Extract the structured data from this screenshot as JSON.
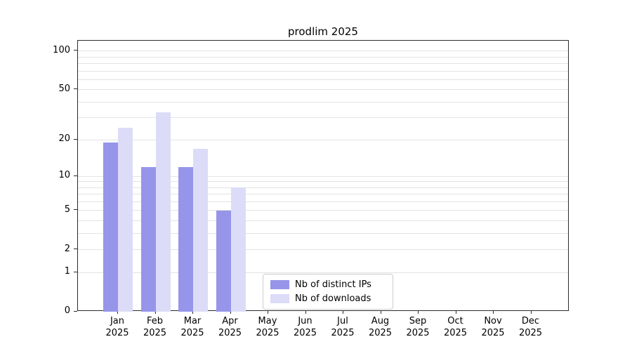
{
  "chart_data": {
    "type": "bar",
    "title": "prodlim 2025",
    "categories": [
      "Jan",
      "Feb",
      "Mar",
      "Apr",
      "May",
      "Jun",
      "Jul",
      "Aug",
      "Sep",
      "Oct",
      "Nov",
      "Dec"
    ],
    "category_year": "2025",
    "series": [
      {
        "name": "Nb of distinct IPs",
        "color": "#9695ea",
        "values": [
          19,
          12,
          12,
          5,
          0,
          0,
          0,
          0,
          0,
          0,
          0,
          0
        ]
      },
      {
        "name": "Nb of downloads",
        "color": "#dcdcf8",
        "values": [
          25,
          33,
          17,
          8,
          0,
          0,
          0,
          0,
          0,
          0,
          0,
          0
        ]
      }
    ],
    "yscale": "log1p",
    "ylim": [
      0,
      100
    ],
    "yticks": [
      0,
      1,
      2,
      5,
      10,
      20,
      50,
      100
    ],
    "grid_minor_values": [
      1,
      2,
      3,
      4,
      5,
      6,
      7,
      8,
      9,
      10,
      20,
      30,
      40,
      50,
      60,
      70,
      80,
      90,
      100
    ],
    "grid": "horizontal",
    "legend_position": "lower center-right"
  }
}
